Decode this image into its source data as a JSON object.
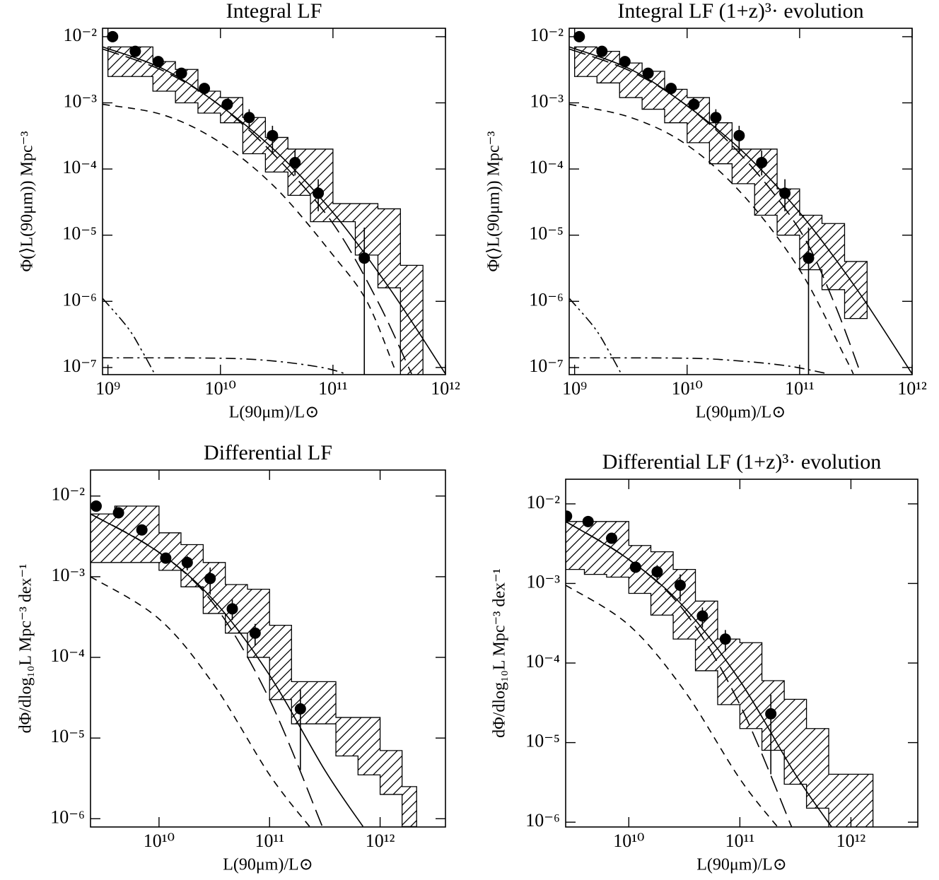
{
  "chart_data": [
    {
      "type": "scatter",
      "title": "Integral LF",
      "xlabel": "L(90μm)/L⊙",
      "ylabel": "Φ(⟩L(90μm)) Mpc⁻³",
      "xscale": "log",
      "yscale": "log",
      "xlim": [
        895000000.0,
        1000000000000.0
      ],
      "ylim": [
        7.8e-08,
        0.0134
      ],
      "xticks": [
        {
          "value": 1000000000.0,
          "label": "10⁹"
        },
        {
          "value": 10000000000.0,
          "label": "10¹⁰"
        },
        {
          "value": 100000000000.0,
          "label": "10¹¹"
        },
        {
          "value": 1000000000000.0,
          "label": "10¹²"
        }
      ],
      "yticks": [
        {
          "value": 0.01,
          "label": "10⁻²"
        },
        {
          "value": 0.001,
          "label": "10⁻³"
        },
        {
          "value": 0.0001,
          "label": "10⁻⁴"
        },
        {
          "value": 1e-05,
          "label": "10⁻⁵"
        },
        {
          "value": 1e-06,
          "label": "10⁻⁶"
        },
        {
          "value": 1e-07,
          "label": "10⁻⁷"
        }
      ],
      "points": {
        "x": [
          1100000000.0,
          1750000000.0,
          2800000000.0,
          4500000000.0,
          7200000000.0,
          11500000000.0,
          18000000000.0,
          29000000000.0,
          46000000000.0,
          74000000000.0,
          190000000000.0
        ],
        "values": [
          0.01,
          0.006,
          0.0042,
          0.0028,
          0.00165,
          0.00095,
          0.0006,
          0.00032,
          0.000125,
          4.3e-05,
          4.5e-06
        ],
        "err_low": [
          0.009,
          0.0052,
          0.0037,
          0.0024,
          0.0014,
          0.00075,
          0.0004,
          0.00017,
          8e-05,
          2.3e-05,
          1e-08
        ],
        "err_high": [
          0.011,
          0.0068,
          0.0047,
          0.0032,
          0.0019,
          0.00115,
          0.0008,
          0.00045,
          0.00019,
          7e-05,
          1.3e-05
        ]
      },
      "band": {
        "edges": [
          1000000000.0,
          1580000000.0,
          2510000000.0,
          3980000000.0,
          6310000000.0,
          10000000000.0,
          15800000000.0,
          25100000000.0,
          39800000000.0,
          63100000000.0,
          100000000000.0,
          158000000000.0,
          251000000000.0,
          398000000000.0,
          631000000000.0
        ],
        "upper": [
          0.007,
          0.007,
          0.0042,
          0.0032,
          0.0015,
          0.0012,
          0.0006,
          0.0003,
          0.0002,
          0.0002,
          3e-05,
          3e-05,
          2.5e-05,
          3.5e-06
        ],
        "lower": [
          0.0025,
          0.0025,
          0.0015,
          0.001,
          0.0007,
          0.0005,
          0.00017,
          9e-05,
          4e-05,
          1.6e-05,
          1.6e-05,
          5e-06,
          1.6e-06,
          1e-08
        ]
      },
      "lines": [
        {
          "style": "solid",
          "x": [
            900000000.0,
            3160000000.0,
            10000000000.0,
            31600000000.0,
            100000000000.0,
            316000000000.0,
            1000000000000.0
          ],
          "values": [
            0.007,
            0.0032,
            0.0009,
            0.00018,
            2.2e-05,
            1.6e-06,
            8e-08
          ]
        },
        {
          "style": "dashed",
          "x": [
            900000000.0,
            3160000000.0,
            10000000000.0,
            31600000000.0,
            100000000000.0,
            200000000000.0,
            350000000000.0
          ],
          "values": [
            0.00095,
            0.00065,
            0.00025,
            5e-05,
            5e-06,
            1e-06,
            1e-07
          ]
        },
        {
          "style": "long-dashed",
          "x": [
            900000000.0,
            3160000000.0,
            10000000000.0,
            31600000000.0,
            100000000000.0,
            250000000000.0,
            500000000000.0
          ],
          "values": [
            0.0065,
            0.003,
            0.0009,
            0.00015,
            1.5e-05,
            1e-06,
            8e-08
          ]
        },
        {
          "style": "dash-dot",
          "x": [
            900000000.0,
            10000000000.0,
            30000000000.0,
            80000000000.0,
            130000000000.0
          ],
          "values": [
            1.4e-07,
            1.38e-07,
            1.25e-07,
            1e-07,
            8e-08
          ]
        },
        {
          "style": "dash-dot-dot",
          "x": [
            900000000.0,
            1500000000.0,
            2000000000.0,
            2600000000.0
          ],
          "values": [
            1.1e-06,
            4e-07,
            1.8e-07,
            8e-08
          ]
        }
      ]
    },
    {
      "type": "scatter",
      "title": "Integral LF (1+z)³· evolution",
      "xlabel": "L(90μm)/L⊙",
      "ylabel": "Φ(⟩L(90μm)) Mpc⁻³",
      "xscale": "log",
      "yscale": "log",
      "xlim": [
        895000000.0,
        1000000000000.0
      ],
      "ylim": [
        7.8e-08,
        0.0134
      ],
      "xticks": [
        {
          "value": 1000000000.0,
          "label": "10⁹"
        },
        {
          "value": 10000000000.0,
          "label": "10¹⁰"
        },
        {
          "value": 100000000000.0,
          "label": "10¹¹"
        },
        {
          "value": 1000000000000.0,
          "label": "10¹²"
        }
      ],
      "yticks": [
        {
          "value": 0.01,
          "label": "10⁻²"
        },
        {
          "value": 0.001,
          "label": "10⁻³"
        },
        {
          "value": 0.0001,
          "label": "10⁻⁴"
        },
        {
          "value": 1e-05,
          "label": "10⁻⁵"
        },
        {
          "value": 1e-06,
          "label": "10⁻⁶"
        },
        {
          "value": 1e-07,
          "label": "10⁻⁷"
        }
      ],
      "points": {
        "x": [
          1100000000.0,
          1750000000.0,
          2800000000.0,
          4500000000.0,
          7200000000.0,
          11500000000.0,
          18000000000.0,
          29000000000.0,
          46000000000.0,
          74000000000.0,
          120000000000.0
        ],
        "values": [
          0.01,
          0.006,
          0.0042,
          0.0028,
          0.00165,
          0.00095,
          0.0006,
          0.00032,
          0.000125,
          4.3e-05,
          4.5e-06
        ],
        "err_low": [
          0.009,
          0.0052,
          0.0037,
          0.0024,
          0.0014,
          0.00075,
          0.0004,
          0.00017,
          8e-05,
          2.3e-05,
          1e-08
        ],
        "err_high": [
          0.011,
          0.0068,
          0.0047,
          0.0032,
          0.0019,
          0.00115,
          0.0008,
          0.00045,
          0.00019,
          7e-05,
          1.3e-05
        ]
      },
      "band": {
        "edges": [
          1000000000.0,
          1580000000.0,
          2510000000.0,
          3980000000.0,
          6310000000.0,
          10000000000.0,
          15800000000.0,
          25100000000.0,
          39800000000.0,
          63100000000.0,
          100000000000.0,
          158000000000.0,
          251000000000.0,
          398000000000.0
        ],
        "upper": [
          0.007,
          0.006,
          0.004,
          0.003,
          0.0016,
          0.0012,
          0.0005,
          0.0002,
          0.0002,
          5e-05,
          2e-05,
          1.5e-05,
          4e-06
        ],
        "lower": [
          0.0025,
          0.002,
          0.0012,
          0.0008,
          0.0005,
          0.00025,
          0.00012,
          6e-05,
          2e-05,
          1e-05,
          3e-06,
          1.5e-06,
          5.5e-07
        ]
      },
      "lines": [
        {
          "style": "solid",
          "x": [
            900000000.0,
            3160000000.0,
            10000000000.0,
            31600000000.0,
            100000000000.0,
            316000000000.0,
            1000000000000.0
          ],
          "values": [
            0.007,
            0.0032,
            0.0009,
            0.00018,
            2.2e-05,
            1.6e-06,
            8e-08
          ]
        },
        {
          "style": "dashed",
          "x": [
            900000000.0,
            3160000000.0,
            10000000000.0,
            31600000000.0,
            100000000000.0,
            250000000000.0,
            300000000000.0
          ],
          "values": [
            0.00095,
            0.0006,
            0.00023,
            4e-05,
            3e-06,
            1.5e-07,
            8e-08
          ]
        },
        {
          "style": "long-dashed",
          "x": [
            900000000.0,
            3160000000.0,
            10000000000.0,
            31600000000.0,
            100000000000.0,
            200000000000.0,
            350000000000.0
          ],
          "values": [
            0.0065,
            0.003,
            0.0009,
            0.00015,
            1.2e-05,
            1e-06,
            8e-08
          ]
        },
        {
          "style": "dash-dot",
          "x": [
            900000000.0,
            10000000000.0,
            30000000000.0,
            80000000000.0,
            180000000000.0
          ],
          "values": [
            1.4e-07,
            1.38e-07,
            1.25e-07,
            1.05e-07,
            8e-08
          ]
        },
        {
          "style": "dash-dot-dot",
          "x": [
            900000000.0,
            1500000000.0,
            2000000000.0,
            2600000000.0
          ],
          "values": [
            1.1e-06,
            4e-07,
            1.8e-07,
            8e-08
          ]
        }
      ]
    },
    {
      "type": "scatter",
      "title": "Differential LF",
      "xlabel": "L(90μm)/L⊙",
      "ylabel": "dΦ/dlog₁₀L Mpc⁻³ dex⁻¹",
      "xscale": "log",
      "yscale": "log",
      "xlim": [
        2400000000.0,
        3900000000000.0
      ],
      "ylim": [
        7.9e-07,
        0.021
      ],
      "xticks": [
        {
          "value": 10000000000.0,
          "label": "10¹⁰"
        },
        {
          "value": 100000000000.0,
          "label": "10¹¹"
        },
        {
          "value": 1000000000000.0,
          "label": "10¹²"
        }
      ],
      "yticks": [
        {
          "value": 0.01,
          "label": "10⁻²"
        },
        {
          "value": 0.001,
          "label": "10⁻³"
        },
        {
          "value": 0.0001,
          "label": "10⁻⁴"
        },
        {
          "value": 1e-05,
          "label": "10⁻⁵"
        },
        {
          "value": 1e-06,
          "label": "10⁻⁶"
        }
      ],
      "points": {
        "x": [
          2700000000.0,
          4300000000.0,
          7000000000.0,
          11500000000.0,
          18000000000.0,
          29000000000.0,
          46000000000.0,
          74000000000.0,
          190000000000.0
        ],
        "values": [
          0.0075,
          0.0062,
          0.0038,
          0.0017,
          0.0015,
          0.00095,
          0.0004,
          0.0002,
          2.3e-05
        ],
        "err_low": [
          0.0068,
          0.0056,
          0.0034,
          0.0015,
          0.0012,
          0.0006,
          0.00029,
          0.00014,
          4e-06
        ],
        "err_high": [
          0.0082,
          0.0068,
          0.0042,
          0.0019,
          0.0018,
          0.0013,
          0.00052,
          0.00026,
          4e-05
        ]
      },
      "band": {
        "edges": [
          2400000000.0,
          3980000000.0,
          6310000000.0,
          10000000000.0,
          15800000000.0,
          25100000000.0,
          39800000000.0,
          63100000000.0,
          100000000000.0,
          158000000000.0,
          251000000000.0,
          398000000000.0,
          631000000000.0,
          1000000000000.0,
          1580000000000.0,
          2140000000000.0
        ],
        "upper": [
          0.006,
          0.0075,
          0.0075,
          0.0035,
          0.0025,
          0.0015,
          0.0008,
          0.0007,
          0.00025,
          5e-05,
          5e-05,
          1.8e-05,
          1.8e-05,
          7e-06,
          2.5e-06
        ],
        "lower": [
          0.0015,
          0.0015,
          0.0015,
          0.0012,
          0.00075,
          0.00035,
          0.0002,
          0.0001,
          3e-05,
          1.5e-05,
          1.5e-05,
          6e-06,
          3.5e-06,
          2e-06,
          8e-07
        ]
      },
      "lines": [
        {
          "style": "solid",
          "x": [
            2400000000.0,
            10000000000.0,
            31600000000.0,
            100000000000.0,
            316000000000.0,
            700000000000.0
          ],
          "values": [
            0.006,
            0.002,
            0.0005,
            6e-05,
            4e-06,
            8e-07
          ]
        },
        {
          "style": "dashed",
          "x": [
            2400000000.0,
            10000000000.0,
            31600000000.0,
            100000000000.0,
            230000000000.0
          ],
          "values": [
            0.001,
            0.0003,
            4.5e-05,
            3.5e-06,
            8e-07
          ]
        },
        {
          "style": "long-dashed",
          "x": [
            2400000000.0,
            10000000000.0,
            31600000000.0,
            100000000000.0,
            300000000000.0
          ],
          "values": [
            0.006,
            0.002,
            0.00045,
            3e-05,
            8e-07
          ]
        }
      ]
    },
    {
      "type": "scatter",
      "title": "Differential LF (1+z)³· evolution",
      "xlabel": "L(90μm)/L⊙",
      "ylabel": "dΦ/dlog₁₀L Mpc⁻³ dex⁻¹",
      "xscale": "log",
      "yscale": "log",
      "xlim": [
        2700000000.0,
        4000000000000.0
      ],
      "ylim": [
        8.7e-07,
        0.0204
      ],
      "xticks": [
        {
          "value": 10000000000.0,
          "label": "10¹⁰"
        },
        {
          "value": 100000000000.0,
          "label": "10¹¹"
        },
        {
          "value": 1000000000000.0,
          "label": "10¹²"
        }
      ],
      "yticks": [
        {
          "value": 0.01,
          "label": "10⁻²"
        },
        {
          "value": 0.001,
          "label": "10⁻³"
        },
        {
          "value": 0.0001,
          "label": "10⁻⁴"
        },
        {
          "value": 1e-05,
          "label": "10⁻⁵"
        },
        {
          "value": 1e-06,
          "label": "10⁻⁶"
        }
      ],
      "points": {
        "x": [
          2750000000.0,
          4300000000.0,
          7000000000.0,
          11500000000.0,
          18000000000.0,
          29000000000.0,
          46000000000.0,
          74000000000.0,
          190000000000.0
        ],
        "values": [
          0.007,
          0.006,
          0.0037,
          0.0016,
          0.0014,
          0.00095,
          0.00039,
          0.0002,
          2.3e-05
        ],
        "err_low": [
          0.0063,
          0.0054,
          0.0033,
          0.0014,
          0.0011,
          0.0006,
          0.00028,
          0.00014,
          4e-06
        ],
        "err_high": [
          0.0077,
          0.0066,
          0.0041,
          0.0018,
          0.0017,
          0.0013,
          0.0005,
          0.00026,
          4e-05
        ]
      },
      "band": {
        "edges": [
          2700000000.0,
          3980000000.0,
          6310000000.0,
          10000000000.0,
          15800000000.0,
          25100000000.0,
          39800000000.0,
          63100000000.0,
          100000000000.0,
          158000000000.0,
          251000000000.0,
          398000000000.0,
          631000000000.0,
          1000000000000.0,
          1580000000000.0
        ],
        "upper": [
          0.006,
          0.006,
          0.006,
          0.003,
          0.0025,
          0.0015,
          0.0006,
          0.0002,
          0.00018,
          6e-05,
          3.5e-05,
          1.5e-05,
          4e-06,
          4e-06
        ],
        "lower": [
          0.0015,
          0.0013,
          0.0012,
          0.00075,
          0.0004,
          0.0002,
          8e-05,
          3e-05,
          1.5e-05,
          8e-06,
          3e-06,
          1.5e-06,
          8e-07,
          8e-07
        ]
      },
      "lines": [
        {
          "style": "solid",
          "x": [
            2700000000.0,
            10000000000.0,
            31600000000.0,
            100000000000.0,
            316000000000.0,
            700000000000.0
          ],
          "values": [
            0.006,
            0.002,
            0.0005,
            6e-05,
            4e-06,
            8e-07
          ]
        },
        {
          "style": "dashed",
          "x": [
            2700000000.0,
            10000000000.0,
            31600000000.0,
            100000000000.0,
            230000000000.0
          ],
          "values": [
            0.00095,
            0.0003,
            4.5e-05,
            3.5e-06,
            8e-07
          ]
        },
        {
          "style": "long-dashed",
          "x": [
            2700000000.0,
            10000000000.0,
            31600000000.0,
            100000000000.0,
            300000000000.0
          ],
          "values": [
            0.006,
            0.002,
            0.00045,
            3e-05,
            8e-07
          ]
        }
      ]
    }
  ]
}
